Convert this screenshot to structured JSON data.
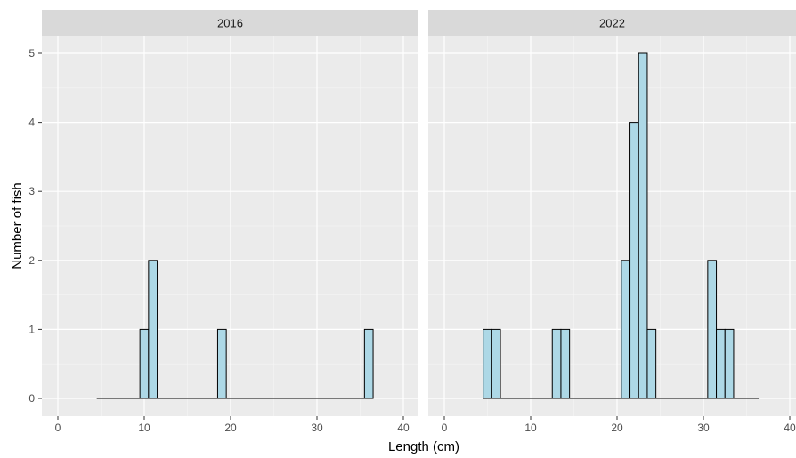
{
  "chart_data": {
    "type": "bar",
    "xlabel": "Length (cm)",
    "ylabel": "Number of fish",
    "xlim": [
      0,
      40
    ],
    "ylim": [
      0,
      5
    ],
    "x_ticks": [
      "0",
      "10",
      "20",
      "30",
      "40"
    ],
    "y_ticks": [
      "0",
      "1",
      "2",
      "3",
      "4",
      "5"
    ],
    "bin_width": 1,
    "histogram_span": [
      4.5,
      36.5
    ],
    "grid": true,
    "legend": "none",
    "colors": {
      "bar_fill": "#add8e6",
      "bar_stroke": "#000000",
      "panel_bg": "#ebebeb",
      "strip_bg": "#d9d9d9",
      "grid_major": "#ffffff"
    },
    "panels": [
      {
        "label": "2016",
        "bins": [
          {
            "x": 10,
            "count": 1
          },
          {
            "x": 11,
            "count": 2
          },
          {
            "x": 19,
            "count": 1
          },
          {
            "x": 36,
            "count": 1
          }
        ]
      },
      {
        "label": "2022",
        "bins": [
          {
            "x": 5,
            "count": 1
          },
          {
            "x": 6,
            "count": 1
          },
          {
            "x": 13,
            "count": 1
          },
          {
            "x": 14,
            "count": 1
          },
          {
            "x": 21,
            "count": 2
          },
          {
            "x": 22,
            "count": 4
          },
          {
            "x": 23,
            "count": 5
          },
          {
            "x": 24,
            "count": 1
          },
          {
            "x": 31,
            "count": 2
          },
          {
            "x": 32,
            "count": 1
          },
          {
            "x": 33,
            "count": 1
          }
        ]
      }
    ]
  }
}
